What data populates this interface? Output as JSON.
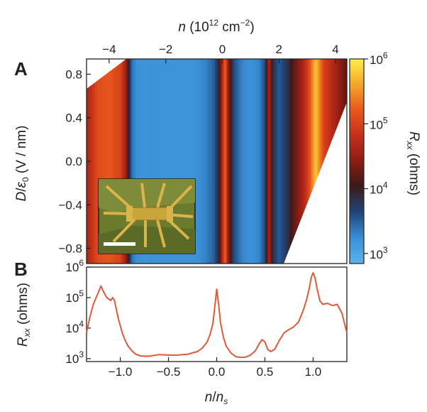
{
  "panels": {
    "a_label": "A",
    "b_label": "B"
  },
  "chart_data": [
    {
      "panel": "A",
      "type": "heatmap",
      "xlabel_top_var": "n",
      "xlabel_top_open": " (10",
      "xlabel_top_exp": "12",
      "xlabel_top_unit": " cm",
      "xlabel_top_unit_exp": "−2",
      "xlabel_top_close": ")",
      "xlim": [
        -4.8,
        4.4
      ],
      "xticks": [
        -4,
        -2,
        0,
        2,
        4
      ],
      "xtick_labels": [
        "−4",
        "−2",
        "0",
        "2",
        "4"
      ],
      "ylabel_var": "D",
      "ylabel_sep": "/",
      "ylabel_eps": "ε",
      "ylabel_eps_sub": "0",
      "ylabel_unit": " (V / nm)",
      "ylim": [
        -0.94,
        0.94
      ],
      "yticks": [
        0.8,
        0.4,
        0.0,
        -0.4,
        -0.8
      ],
      "ytick_labels": [
        "0.8",
        "0.4",
        "0.0",
        "−0.4",
        "−0.8"
      ],
      "colorbar": {
        "label_var": "R",
        "label_sub": "xx",
        "label_unit": " (ohms)",
        "scale": "log",
        "range": [
          700,
          1000000
        ],
        "ticks": [
          1000000,
          100000,
          10000,
          1000
        ],
        "tick_base": [
          "10",
          "10",
          "10",
          "10"
        ],
        "tick_exp": [
          "6",
          "5",
          "4",
          "3"
        ],
        "colors": [
          "#5ab4ec",
          "#3a8fd6",
          "#21457a",
          "#3b1a1a",
          "#8a1c12",
          "#c52f1a",
          "#e8581c",
          "#f4a52b",
          "#fff04a"
        ]
      },
      "inset": "device optical micrograph with scale bar",
      "columns_n": [
        -4.8,
        -4.4,
        -4.0,
        -3.6,
        -3.4,
        -3.2,
        -3.0,
        -2.6,
        -2.0,
        -1.5,
        -1.0,
        -0.6,
        -0.3,
        -0.15,
        0.0,
        0.1,
        0.2,
        0.4,
        0.7,
        1.0,
        1.3,
        1.5,
        1.65,
        1.8,
        2.0,
        2.3,
        2.6,
        2.9,
        3.1,
        3.3,
        3.45,
        3.6,
        3.9,
        4.2,
        4.4
      ],
      "columns_log10R": [
        4.6,
        5.1,
        5.2,
        5.0,
        4.5,
        3.4,
        3.2,
        3.2,
        3.2,
        3.2,
        3.2,
        3.3,
        3.5,
        3.8,
        4.7,
        5.3,
        4.5,
        3.6,
        3.3,
        3.2,
        3.3,
        3.6,
        4.7,
        3.8,
        3.5,
        3.8,
        4.3,
        4.7,
        5.2,
        5.8,
        5.4,
        5.0,
        4.7,
        4.4,
        4.2
      ]
    },
    {
      "panel": "B",
      "type": "line",
      "xlabel_var": "n",
      "xlabel_sep": "/",
      "xlabel_var2": "n",
      "xlabel_sub": "s",
      "xlim": [
        -1.35,
        1.35
      ],
      "xticks": [
        -1.0,
        -0.5,
        0.0,
        0.5,
        1.0
      ],
      "xtick_labels": [
        "−1.0",
        "−0.5",
        "0.0",
        "0.5",
        "1.0"
      ],
      "ylabel_var": "R",
      "ylabel_sub": "xx",
      "ylabel_unit": " (ohms)",
      "yscale": "log",
      "ylim": [
        800,
        1000000
      ],
      "yticks": [
        1000,
        10000,
        100000,
        1000000
      ],
      "ytick_base": [
        "10",
        "10",
        "10",
        "10"
      ],
      "ytick_exp": [
        "3",
        "4",
        "5",
        "6"
      ],
      "color": "#e05a3a",
      "x": [
        -1.35,
        -1.32,
        -1.28,
        -1.24,
        -1.2,
        -1.18,
        -1.16,
        -1.14,
        -1.12,
        -1.1,
        -1.08,
        -1.06,
        -1.04,
        -1.02,
        -1.0,
        -0.98,
        -0.95,
        -0.92,
        -0.88,
        -0.84,
        -0.8,
        -0.75,
        -0.7,
        -0.6,
        -0.5,
        -0.4,
        -0.3,
        -0.2,
        -0.15,
        -0.1,
        -0.07,
        -0.04,
        -0.02,
        0.0,
        0.02,
        0.04,
        0.07,
        0.1,
        0.15,
        0.2,
        0.25,
        0.3,
        0.35,
        0.4,
        0.44,
        0.47,
        0.5,
        0.53,
        0.56,
        0.6,
        0.65,
        0.7,
        0.75,
        0.8,
        0.85,
        0.9,
        0.93,
        0.96,
        0.98,
        1.0,
        1.02,
        1.04,
        1.07,
        1.1,
        1.15,
        1.2,
        1.25,
        1.3,
        1.35
      ],
      "y": [
        7000,
        20000,
        60000,
        120000,
        240000,
        170000,
        130000,
        100000,
        90000,
        80000,
        100000,
        80000,
        40000,
        20000,
        12000,
        7000,
        4000,
        2600,
        1800,
        1400,
        1250,
        1200,
        1200,
        1350,
        1300,
        1300,
        1400,
        1700,
        2200,
        3500,
        6000,
        14000,
        50000,
        190000,
        60000,
        15000,
        5000,
        2500,
        1500,
        1150,
        1100,
        1120,
        1300,
        1800,
        3000,
        4200,
        3500,
        2000,
        1700,
        2000,
        4000,
        7000,
        9000,
        11000,
        16000,
        40000,
        80000,
        200000,
        450000,
        650000,
        450000,
        200000,
        80000,
        60000,
        65000,
        55000,
        60000,
        30000,
        7000
      ]
    }
  ]
}
